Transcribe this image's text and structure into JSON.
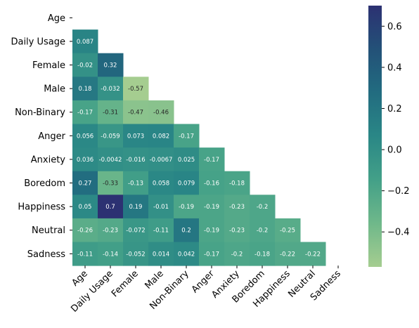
{
  "chart_data": {
    "type": "heatmap",
    "title": "",
    "xlabel": "",
    "ylabel": "",
    "variables": [
      "Age",
      "Daily Usage",
      "Female",
      "Male",
      "Non-Binary",
      "Anger",
      "Anxiety",
      "Boredom",
      "Happiness",
      "Neutral",
      "Sadness"
    ],
    "mask": "upper triangle including diagonal",
    "matrix_lower": [
      [],
      [
        "0.087"
      ],
      [
        "-0.02",
        "0.32"
      ],
      [
        "0.18",
        "-0.032",
        "-0.57"
      ],
      [
        "-0.17",
        "-0.31",
        "-0.47",
        "-0.46"
      ],
      [
        "0.056",
        "-0.059",
        "0.073",
        "0.082",
        "-0.17"
      ],
      [
        "0.036",
        "-0.0042",
        "-0.016",
        "-0.0067",
        "0.025",
        "-0.17"
      ],
      [
        "0.27",
        "-0.33",
        "-0.13",
        "0.058",
        "0.079",
        "-0.16",
        "-0.18"
      ],
      [
        "0.05",
        "0.7",
        "0.19",
        "-0.01",
        "-0.19",
        "-0.19",
        "-0.23",
        "-0.2"
      ],
      [
        "-0.26",
        "-0.23",
        "-0.072",
        "-0.11",
        "0.2",
        "-0.19",
        "-0.23",
        "-0.2",
        "-0.25"
      ],
      [
        "-0.11",
        "-0.14",
        "-0.052",
        "0.014",
        "0.042",
        "-0.17",
        "-0.2",
        "-0.18",
        "-0.22",
        "-0.22"
      ]
    ],
    "colorbar": {
      "colormap": "crest",
      "vmin": -0.57,
      "vmax": 0.7,
      "ticks": [
        0.6,
        0.4,
        0.2,
        0.0,
        -0.2,
        -0.4
      ],
      "tick_labels": [
        "0.6",
        "0.4",
        "0.2",
        "0.0",
        "−0.2",
        "−0.4"
      ],
      "color_stops": [
        "#a5cd90",
        "#6fb88a",
        "#43a088",
        "#2a8786",
        "#226c80",
        "#235178",
        "#2c3172"
      ]
    }
  }
}
